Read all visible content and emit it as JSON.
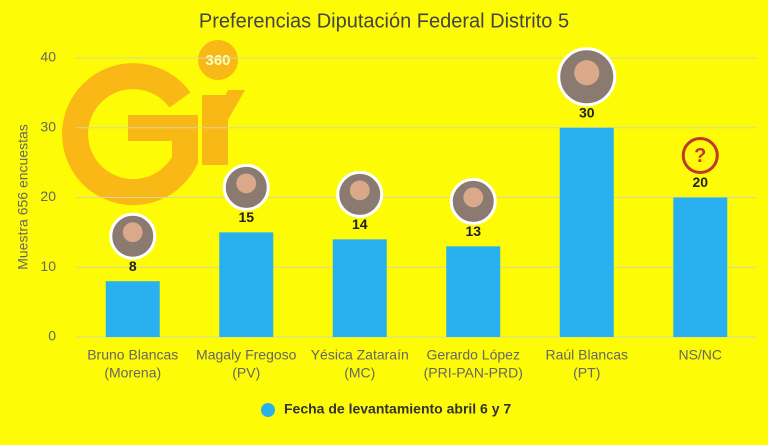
{
  "chart_data": {
    "type": "bar",
    "title": "Preferencias Diputación Federal Distrito 5",
    "y_label": "Muestra 656 encuestas",
    "watermark": "360",
    "unknown_icon": "?",
    "categories": [
      [
        "Bruno Blancas",
        "(Morena)"
      ],
      [
        "Magaly Fregoso",
        "(PV)"
      ],
      [
        "Yésica Zataraín",
        "(MC)"
      ],
      [
        "Gerardo López",
        "(PRI-PAN-PRD)"
      ],
      [
        "Raúl Blancas",
        "(PT)"
      ],
      [
        "NS/NC"
      ]
    ],
    "series": [
      {
        "name": "Fecha de levantamiento abril 6 y 7",
        "color": "#29b1ef",
        "values": [
          8,
          15,
          14,
          13,
          30,
          20
        ]
      }
    ],
    "ylim": [
      0,
      40
    ],
    "yticks": [
      0,
      10,
      20,
      30,
      40
    ],
    "grid": true,
    "legend": "bottom"
  }
}
